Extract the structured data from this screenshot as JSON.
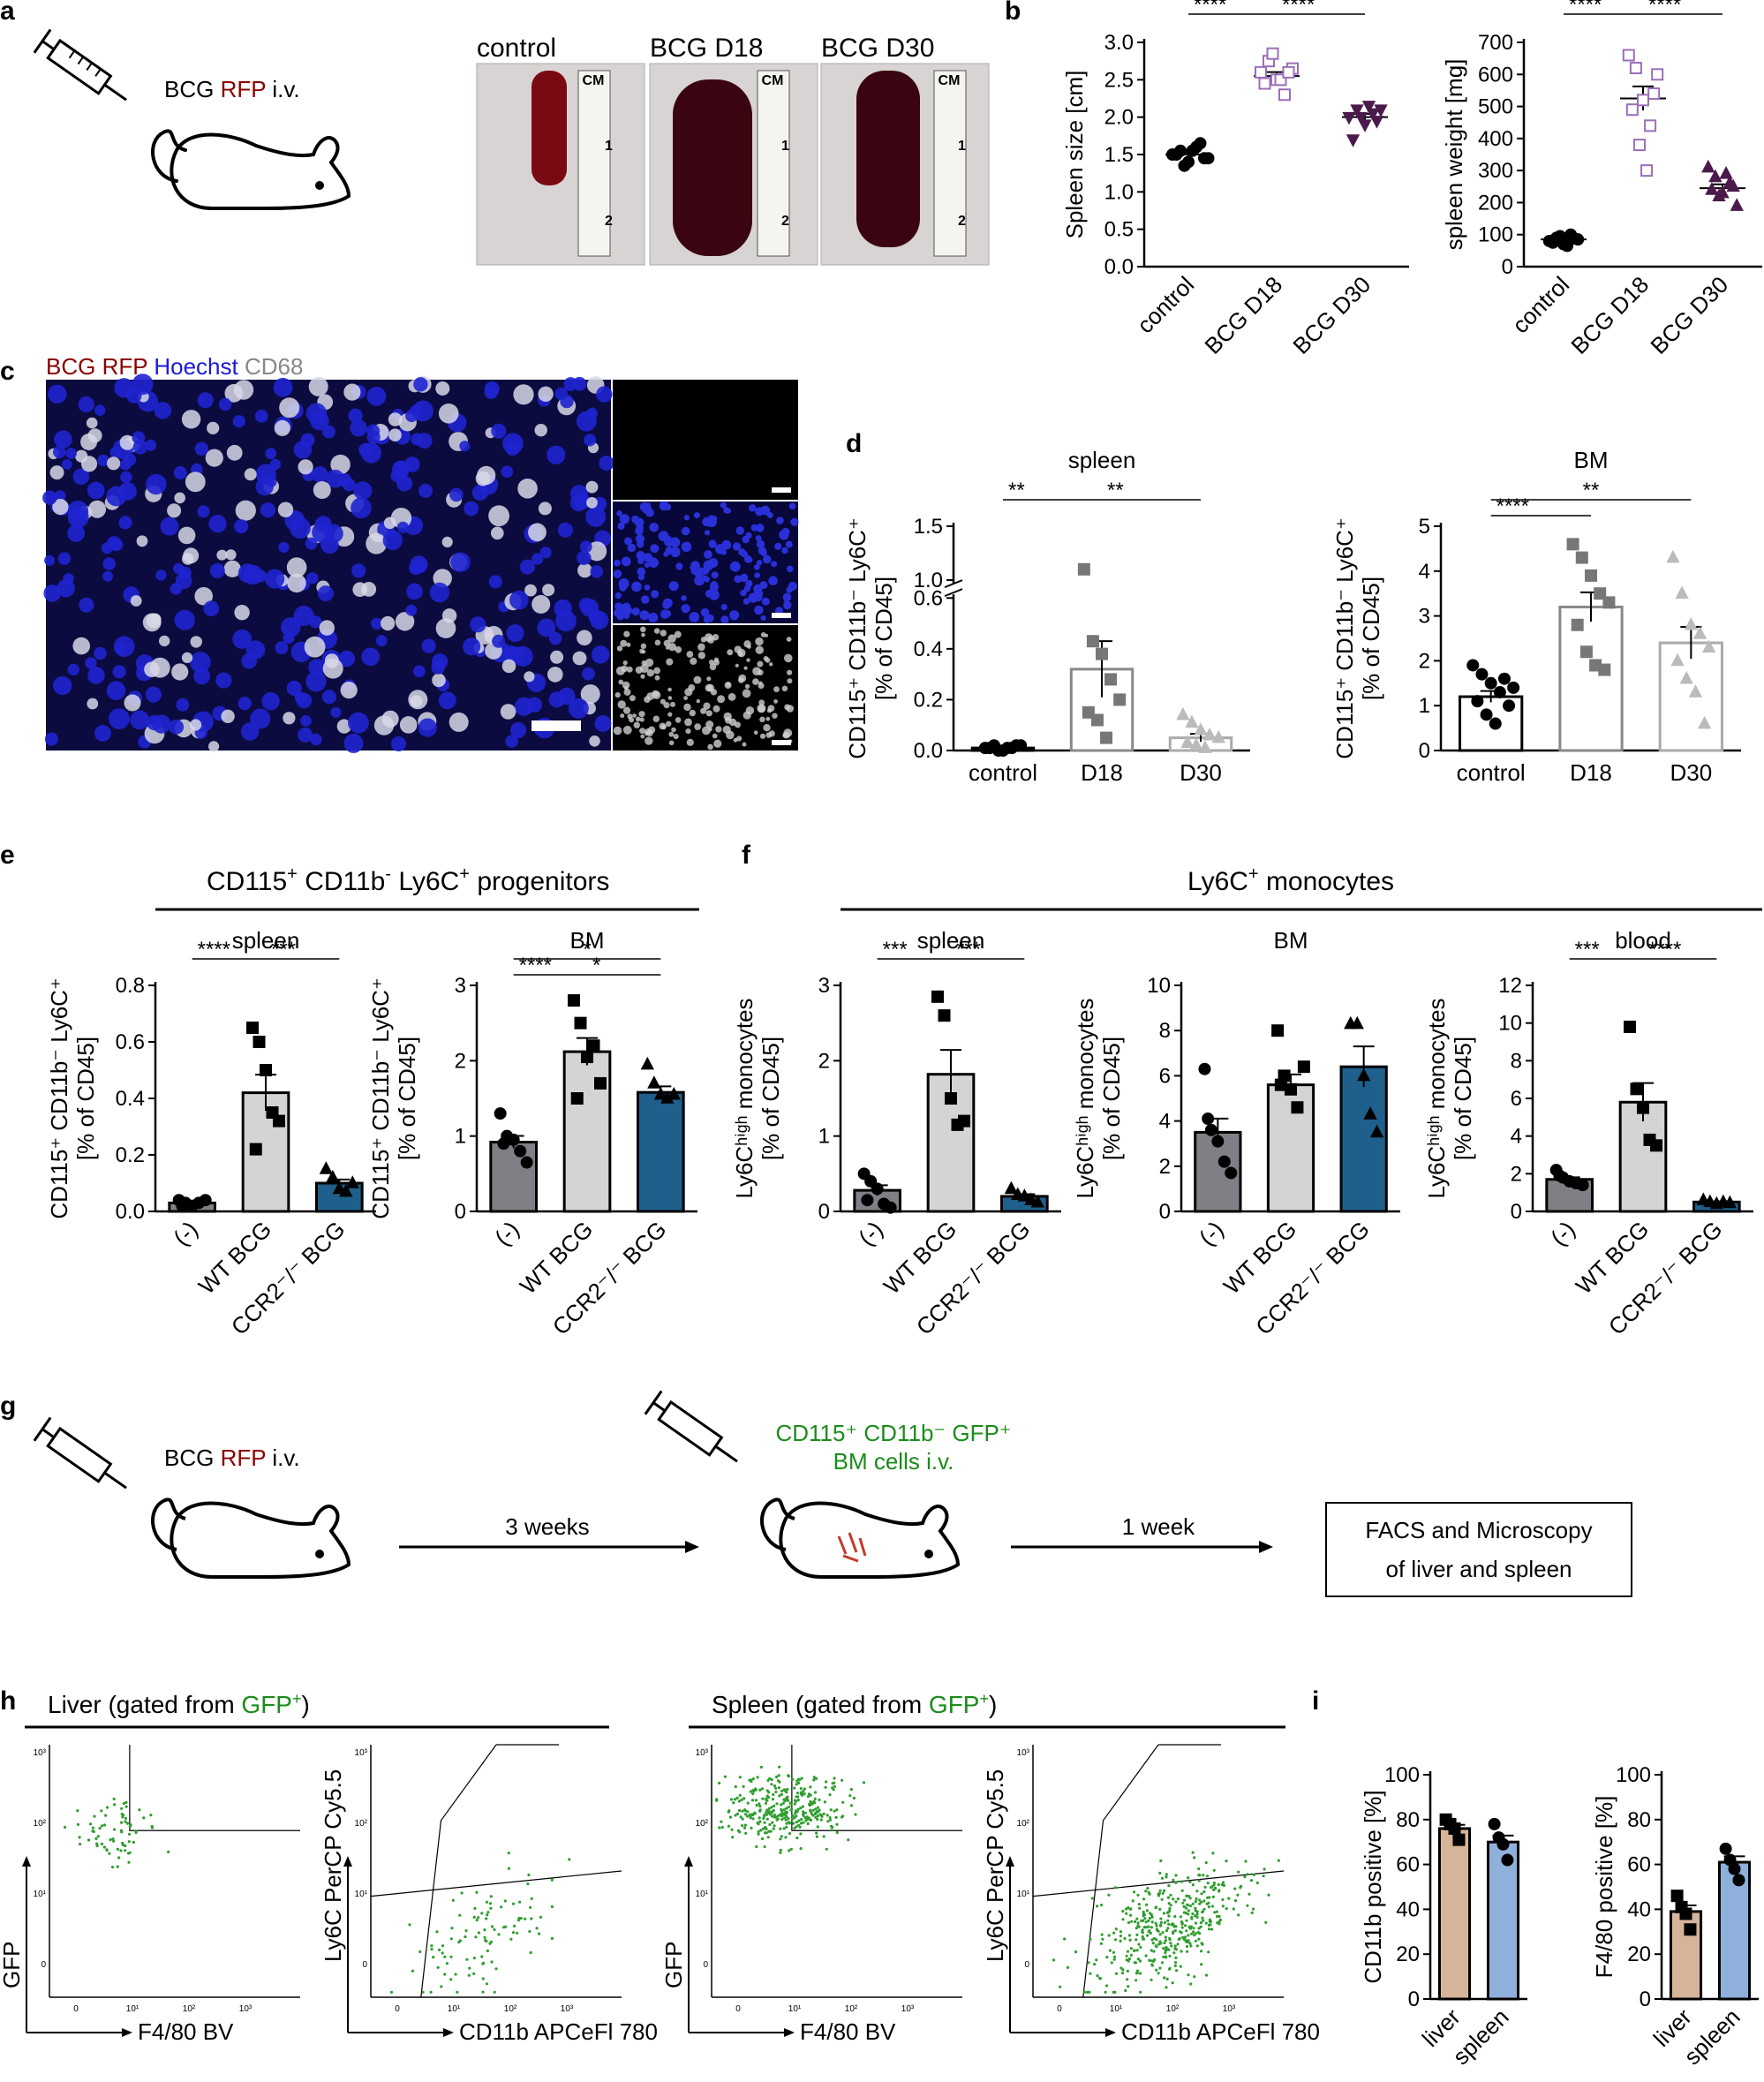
{
  "panel_letters": [
    "a",
    "b",
    "c",
    "d",
    "e",
    "f",
    "g",
    "h",
    "i"
  ],
  "colors": {
    "bcg_red": "#8b0000",
    "green": "#1a8c1a",
    "hoechst_blue": "#1a1adb",
    "d18_purple": "#9b6fb8",
    "d30_purple": "#4b1a4b",
    "ccr2_blue": "#1f5f8b",
    "ctrl_gray": "#7f7f86",
    "wt_gray": "#d4d4d4",
    "liver_tan": "#d6b49a",
    "spleen_blue": "#8fb0db"
  },
  "icons": [
    "syringe-icon",
    "mouse-icon",
    "spleen-photo"
  ],
  "panel_a": {
    "bcg": "BCG",
    "rfp": "RFP",
    "iv": "i.v.",
    "photos": [
      "control",
      "BCG D18",
      "BCG D30"
    ],
    "ruler_unit": "CM",
    "ruler_marks": [
      "1",
      "2"
    ]
  },
  "panel_c": {
    "channel_bcg": "BCG RFP",
    "channel_hoechst": "Hoechst",
    "channel_cd68": "CD68"
  },
  "panel_e_title": {
    "prefix": "CD115",
    "sup1": "+",
    "mid": " CD11b",
    "sup2": "-",
    "mid2": " Ly6C",
    "sup3": "+",
    "suffix": " progenitors"
  },
  "panel_f_title": {
    "prefix": "Ly6C",
    "sup": "+",
    "suffix": " monocytes"
  },
  "panel_g": {
    "bcg": "BCG",
    "rfp": "RFP",
    "iv": "i.v.",
    "transfer_line1": "CD115⁺ CD11b⁻ GFP⁺",
    "transfer_line2": "BM cells i.v.",
    "step1": "3 weeks",
    "step2": "1 week",
    "result_line1": "FACS and Microscopy",
    "result_line2": "of liver and spleen"
  },
  "panel_h": {
    "liver_title": "Liver (gated from ",
    "spleen_title": "Spleen (gated from ",
    "gfp": "GFP",
    "plus": "+",
    "close": ")",
    "x_gfp": "F4/80 BV",
    "y_gfp": "GFP",
    "x_ly6c": "CD11b APCeFl 780",
    "y_ly6c": "Ly6C PerCP Cy5.5",
    "ticks": [
      "0",
      "10¹",
      "10²",
      "10³"
    ]
  },
  "chart_data": [
    {
      "id": "b1",
      "type": "scatter",
      "categories": [
        "control",
        "BCG D18",
        "BCG D30"
      ],
      "ylabel": "Spleen size [cm]",
      "ylim": [
        0,
        3.0
      ],
      "yticks": [
        "0.0",
        "0.5",
        "1.0",
        "1.5",
        "2.0",
        "2.5",
        "3.0"
      ],
      "series": [
        {
          "values": [
            1.5,
            1.55,
            1.4,
            1.6,
            1.45,
            1.5,
            1.35,
            1.55,
            1.65,
            1.45
          ]
        },
        {
          "values": [
            2.6,
            2.75,
            2.5,
            2.3,
            2.65,
            2.45,
            2.85,
            2.5,
            2.6
          ]
        },
        {
          "values": [
            2.0,
            2.1,
            1.9,
            2.05,
            2.1,
            1.7,
            2.0,
            2.15,
            1.95
          ]
        }
      ],
      "means": [
        1.5,
        2.55,
        2.0
      ],
      "sig": [
        "****",
        "****",
        "****"
      ]
    },
    {
      "id": "b2",
      "type": "scatter",
      "categories": [
        "control",
        "BCG D18",
        "BCG D30"
      ],
      "ylabel": "spleen weight [mg]",
      "ylim": [
        0,
        700
      ],
      "yticks": [
        "0",
        "100",
        "200",
        "300",
        "400",
        "500",
        "600",
        "700"
      ],
      "series": [
        {
          "values": [
            80,
            90,
            70,
            100,
            85,
            75,
            95,
            65,
            88
          ]
        },
        {
          "values": [
            660,
            620,
            520,
            440,
            600,
            490,
            380,
            300,
            540
          ]
        },
        {
          "values": [
            310,
            280,
            230,
            260,
            190,
            240,
            220,
            290,
            250
          ]
        }
      ],
      "means": [
        85,
        525,
        245
      ],
      "sig": [
        "***",
        "****",
        "****"
      ]
    },
    {
      "id": "d1",
      "type": "bar",
      "title": "spleen",
      "categories": [
        "control",
        "D18",
        "D30"
      ],
      "ylabel_line1": "CD115⁺ CD11b⁻ Ly6C⁺",
      "ylabel_line2": "[% of CD45]",
      "yticks_low": [
        "0.0",
        "0.2",
        "0.4",
        "0.6"
      ],
      "yticks_high": [
        "1.0",
        "1.5"
      ],
      "values": [
        0.01,
        0.32,
        0.05
      ],
      "points": [
        [
          0.01,
          0.02,
          0.0,
          0.01,
          0.02,
          0.01,
          0.0,
          0.01,
          0.02
        ],
        [
          1.1,
          0.43,
          0.38,
          0.28,
          0.2,
          0.15,
          0.12,
          0.05
        ],
        [
          0.14,
          0.11,
          0.08,
          0.06,
          0.05,
          0.03,
          0.02,
          0.01
        ]
      ],
      "sig": [
        "**",
        "**"
      ]
    },
    {
      "id": "d2",
      "type": "bar",
      "title": "BM",
      "categories": [
        "control",
        "D18",
        "D30"
      ],
      "ylabel_line1": "CD115⁺ CD11b⁻ Ly6C⁺",
      "ylabel_line2": "[% of CD45]",
      "ylim": [
        0,
        5
      ],
      "yticks": [
        "0",
        "1",
        "2",
        "3",
        "4",
        "5"
      ],
      "values": [
        1.2,
        3.2,
        2.4
      ],
      "points": [
        [
          1.9,
          1.7,
          1.5,
          1.3,
          1.0,
          1.1,
          0.8,
          0.6,
          1.6,
          1.4
        ],
        [
          4.6,
          4.3,
          3.9,
          3.5,
          3.3,
          2.8,
          2.2,
          1.9,
          1.8
        ],
        [
          4.3,
          3.5,
          2.8,
          2.6,
          2.3,
          2.0,
          1.6,
          1.3,
          0.6
        ]
      ],
      "sig": [
        "**",
        "****"
      ]
    },
    {
      "id": "e1",
      "type": "bar",
      "title": "spleen",
      "categories": [
        "(-)",
        "WT BCG",
        "CCR2⁻/⁻ BCG"
      ],
      "ylabel_line1": "CD115⁺ CD11b⁻ Ly6C⁺",
      "ylabel_line2": "[% of CD45]",
      "ylim": [
        0,
        0.8
      ],
      "yticks": [
        "0.0",
        "0.2",
        "0.4",
        "0.6",
        "0.8"
      ],
      "values": [
        0.03,
        0.42,
        0.1
      ],
      "points": [
        [
          0.04,
          0.03,
          0.02,
          0.03,
          0.04,
          0.02
        ],
        [
          0.65,
          0.6,
          0.5,
          0.35,
          0.32,
          0.22
        ],
        [
          0.15,
          0.12,
          0.08,
          0.07,
          0.1
        ]
      ],
      "sig": [
        "****",
        "***"
      ]
    },
    {
      "id": "e2",
      "type": "bar",
      "title": "BM",
      "categories": [
        "(-)",
        "WT BCG",
        "CCR2⁻/⁻ BCG"
      ],
      "ylabel_line1": "CD115⁺ CD11b⁻ Ly6C⁺",
      "ylabel_line2": "[% of CD45]",
      "ylim": [
        0,
        3
      ],
      "yticks": [
        "0",
        "1",
        "2",
        "3"
      ],
      "values": [
        0.92,
        2.12,
        1.58
      ],
      "points": [
        [
          1.3,
          1.0,
          0.95,
          0.8,
          0.65,
          0.9
        ],
        [
          2.8,
          2.5,
          2.05,
          2.2,
          1.7,
          1.5
        ],
        [
          1.95,
          1.7,
          1.55,
          1.5,
          1.55
        ]
      ],
      "sig": [
        "*",
        "****",
        "*"
      ]
    },
    {
      "id": "f1",
      "type": "bar",
      "title": "spleen",
      "categories": [
        "(-)",
        "WT BCG",
        "CCR2⁻/⁻ BCG"
      ],
      "ylabel_line1": "Ly6Cʰⁱᵍʰ monocytes",
      "ylabel_line2": "[% of CD45]",
      "ylim": [
        0,
        3
      ],
      "yticks": [
        "0",
        "1",
        "2",
        "3"
      ],
      "values": [
        0.28,
        1.82,
        0.2
      ],
      "points": [
        [
          0.5,
          0.4,
          0.3,
          0.1,
          0.05,
          0.15
        ],
        [
          2.85,
          2.6,
          1.5,
          1.15,
          1.2
        ],
        [
          0.3,
          0.22,
          0.2,
          0.15,
          0.12
        ]
      ],
      "sig": [
        "***",
        "***"
      ]
    },
    {
      "id": "f2",
      "type": "bar",
      "title": "BM",
      "categories": [
        "(-)",
        "WT BCG",
        "CCR2⁻/⁻ BCG"
      ],
      "ylabel_line1": "Ly6Cʰⁱᵍʰ monocytes",
      "ylabel_line2": "[% of CD45]",
      "ylim": [
        0,
        10
      ],
      "yticks": [
        "0",
        "2",
        "4",
        "6",
        "8",
        "10"
      ],
      "values": [
        3.5,
        5.6,
        6.4
      ],
      "points": [
        [
          6.3,
          3.6,
          3.1,
          2.2,
          1.7,
          4.1
        ],
        [
          8.0,
          6.0,
          5.4,
          4.6,
          6.4,
          5.6
        ],
        [
          8.3,
          8.3,
          6.0,
          4.3,
          3.5
        ]
      ],
      "sig": []
    },
    {
      "id": "f3",
      "type": "bar",
      "title": "blood",
      "categories": [
        "(-)",
        "WT BCG",
        "CCR2⁻/⁻ BCG"
      ],
      "ylabel_line1": "Ly6Cʰⁱᵍʰ monocytes",
      "ylabel_line2": "[% of CD45]",
      "ylim": [
        0,
        12
      ],
      "yticks": [
        "0",
        "2",
        "4",
        "6",
        "8",
        "10",
        "12"
      ],
      "values": [
        1.7,
        5.8,
        0.5
      ],
      "points": [
        [
          2.2,
          1.8,
          1.6,
          1.5,
          1.4,
          1.9
        ],
        [
          9.8,
          6.5,
          5.5,
          3.8,
          3.5
        ],
        [
          0.6,
          0.5,
          0.4,
          0.5,
          0.45
        ]
      ],
      "sig": [
        "***",
        "****"
      ]
    },
    {
      "id": "i1",
      "type": "bar",
      "categories": [
        "liver",
        "spleen"
      ],
      "ylabel": "CD11b positive [%]",
      "ylim": [
        0,
        100
      ],
      "yticks": [
        "0",
        "20",
        "40",
        "60",
        "80",
        "100"
      ],
      "values": [
        76,
        70
      ],
      "points": [
        [
          80,
          78,
          76,
          71
        ],
        [
          78,
          72,
          69,
          62
        ]
      ],
      "sig": []
    },
    {
      "id": "i2",
      "type": "bar",
      "categories": [
        "liver",
        "spleen"
      ],
      "ylabel": "F4/80 positive [%]",
      "ylim": [
        0,
        100
      ],
      "yticks": [
        "0",
        "20",
        "40",
        "60",
        "80",
        "100"
      ],
      "values": [
        39,
        61
      ],
      "points": [
        [
          46,
          41,
          38,
          31
        ],
        [
          67,
          62,
          58,
          53
        ]
      ],
      "sig": []
    }
  ]
}
